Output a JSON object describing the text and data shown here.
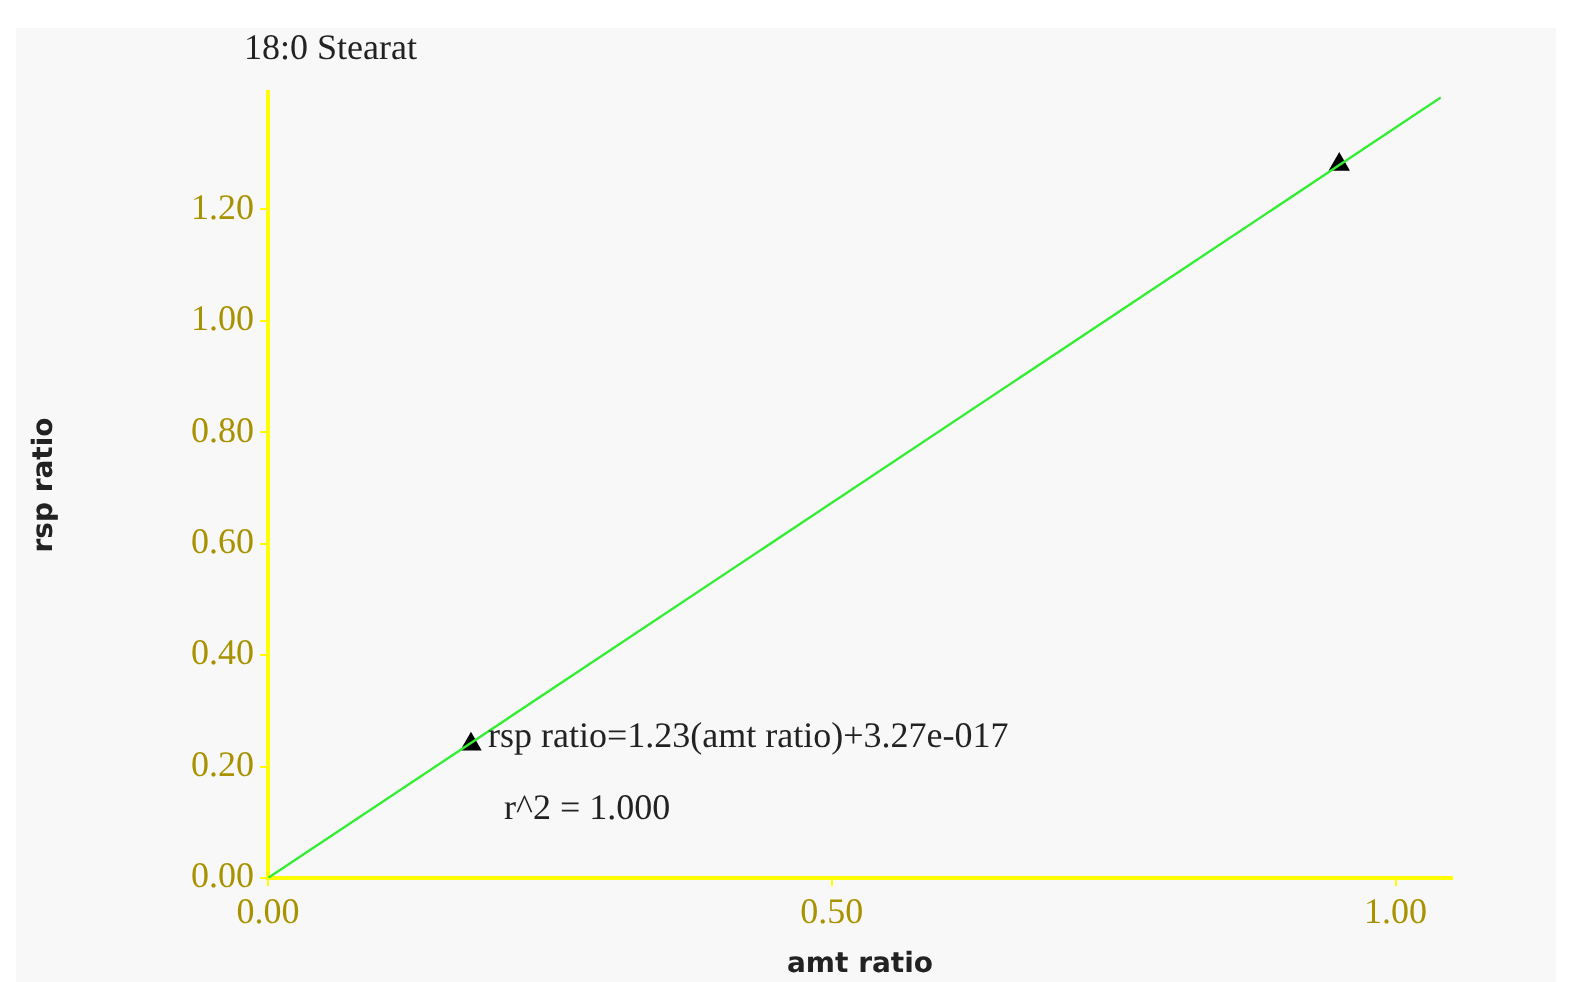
{
  "chart_data": {
    "type": "scatter",
    "title": "18:0 Stearat",
    "xlabel": "amt ratio",
    "ylabel": "rsp ratio",
    "xlim": [
      0,
      1.05
    ],
    "ylim": [
      0,
      1.41
    ],
    "xticks": [
      {
        "value": 0,
        "label": "0.00"
      },
      {
        "value": 0.5,
        "label": "0.50"
      },
      {
        "value": 1,
        "label": "1.00"
      }
    ],
    "yticks": [
      {
        "value": 0,
        "label": "0.00"
      },
      {
        "value": 0.2,
        "label": "0.20"
      },
      {
        "value": 0.4,
        "label": "0.40"
      },
      {
        "value": 0.6,
        "label": "0.60"
      },
      {
        "value": 0.8,
        "label": "0.80"
      },
      {
        "value": 1,
        "label": "1.00"
      },
      {
        "value": 1.2,
        "label": "1.20"
      }
    ],
    "grid": false,
    "legend": false,
    "series": [
      {
        "type": "line",
        "color": "#33ee33",
        "x": [
          0,
          1.04
        ],
        "values": [
          0,
          1.4
        ],
        "marker": "none",
        "line_style": "solid"
      },
      {
        "type": "scatter",
        "color": "#000000",
        "x": [
          0.18,
          0.95
        ],
        "values": [
          0.24,
          1.28
        ],
        "marker": "triangle"
      }
    ],
    "annotations": [
      "rsp ratio=1.23(amt ratio)+3.27e-017",
      "r^2 = 1.000"
    ]
  }
}
